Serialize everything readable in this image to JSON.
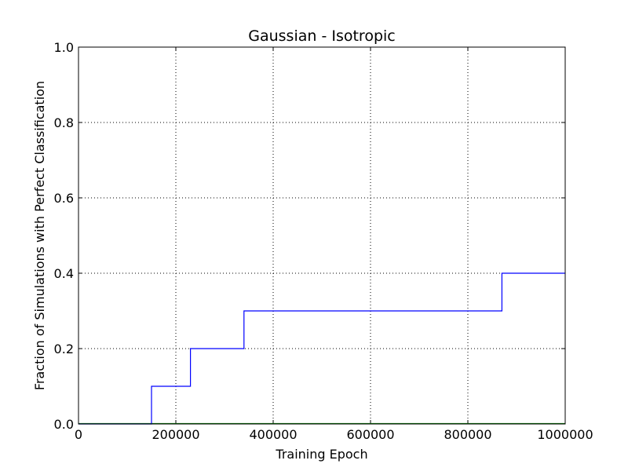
{
  "chart_data": {
    "type": "line",
    "title": "Gaussian - Isotropic",
    "xlabel": "Training Epoch",
    "ylabel": "Fraction of Simulations with Perfect Classification",
    "xlim": [
      0,
      1000000
    ],
    "ylim": [
      0,
      1.0
    ],
    "xticks": [
      0,
      200000,
      400000,
      600000,
      800000,
      1000000
    ],
    "xtick_labels": [
      "0",
      "200000",
      "400000",
      "600000",
      "800000",
      "1000000"
    ],
    "yticks": [
      0,
      0.2,
      0.4,
      0.6,
      0.8,
      1.0
    ],
    "ytick_labels": [
      "0.0",
      "0.2",
      "0.4",
      "0.6",
      "0.8",
      "1.0"
    ],
    "grid": true,
    "series": [
      {
        "color": "#0000ff",
        "step": true,
        "x": [
          0,
          150000,
          230000,
          340000,
          870000,
          1000000
        ],
        "y": [
          0.0,
          0.1,
          0.2,
          0.3,
          0.4,
          0.4
        ]
      }
    ],
    "baseline_color": "#008000"
  }
}
